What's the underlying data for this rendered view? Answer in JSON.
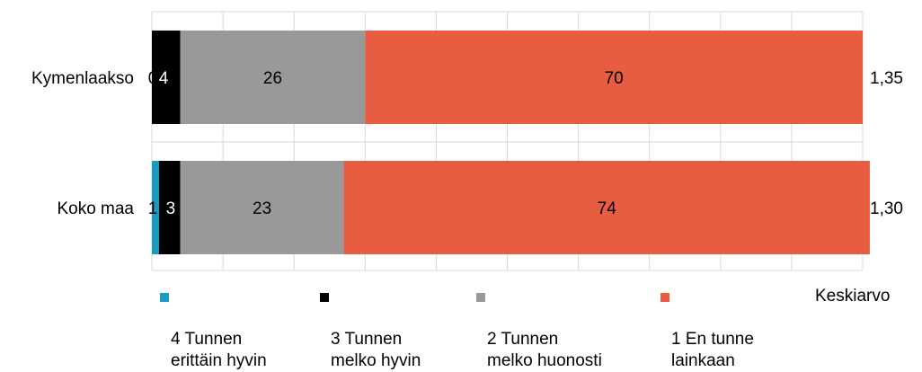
{
  "chart_data": {
    "type": "bar",
    "orientation": "horizontal",
    "stacked": true,
    "categories": [
      "Kymenlaakso",
      "Koko maa"
    ],
    "series": [
      {
        "name": "4 Tunnen\nerittäin hyvin",
        "color": "#1a9bc4",
        "values": [
          0,
          1
        ]
      },
      {
        "name": "3 Tunnen\nmelko hyvin",
        "color": "#000000",
        "values": [
          4,
          3
        ]
      },
      {
        "name": "2 Tunnen\nmelko huonosti",
        "color": "#999999",
        "values": [
          26,
          23
        ]
      },
      {
        "name": "1 En tunne\nlainkaan",
        "color": "#e85c41",
        "values": [
          70,
          74
        ]
      }
    ],
    "xlim": [
      0,
      100
    ],
    "grid": true,
    "legend_position": "bottom",
    "extra_column": {
      "title": "Keskiarvo",
      "values": [
        "1,35",
        "1,30"
      ]
    }
  }
}
